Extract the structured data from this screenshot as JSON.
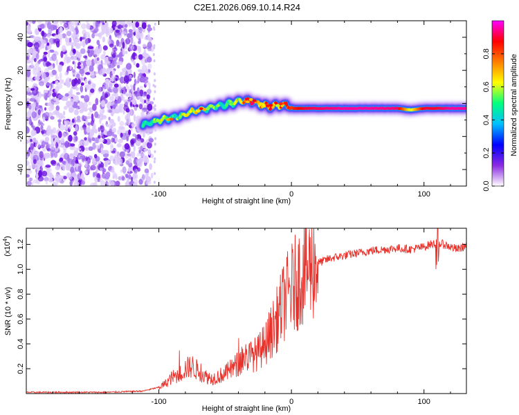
{
  "title": "C2E1.2026.069.10.14.R24",
  "chart_data": [
    {
      "type": "heatmap",
      "xlabel": "Height of straight line (km)",
      "ylabel": "Frequency (Hz)",
      "xlim": [
        -200,
        132
      ],
      "ylim": [
        -50,
        50
      ],
      "x_ticks": [
        -100,
        0,
        100
      ],
      "x_tick_labels": [
        "-100",
        "0",
        "100"
      ],
      "y_ticks": [
        -40,
        -20,
        0,
        20,
        40
      ],
      "y_tick_labels": [
        "-40",
        "-20",
        "0",
        "20",
        "40"
      ],
      "colorbar": {
        "label": "Normalized spectral amplitude",
        "range": [
          0,
          1
        ],
        "ticks": [
          0.0,
          0.2,
          0.4,
          0.6,
          0.8
        ],
        "tick_labels": [
          "0.0",
          "0.2",
          "0.4",
          "0.6",
          "0.8"
        ],
        "colors": [
          "#ffffff",
          "#8a2be2",
          "#0000ff",
          "#00bfff",
          "#00ff80",
          "#ffff00",
          "#ff8000",
          "#ff0000",
          "#ff00ff"
        ]
      },
      "noise_region_x": [
        -200,
        -103
      ],
      "ridge": {
        "x": [
          -112,
          -100,
          -92,
          -84,
          -78,
          -72,
          -64,
          -58,
          -52,
          -46,
          -40,
          -34,
          -28,
          -22,
          -16,
          -10,
          -4,
          2,
          10,
          20,
          40,
          60,
          80,
          90,
          100,
          110,
          120,
          132
        ],
        "freq_hz": [
          -13,
          -10,
          -9,
          -8,
          -6,
          -4,
          -3,
          -2,
          -1,
          0,
          1,
          2,
          1,
          -1,
          -2,
          -1,
          -1,
          -3,
          -3,
          -3,
          -3,
          -3,
          -3,
          -4,
          -3,
          -3,
          -3,
          -3
        ],
        "amplitude": [
          0.45,
          0.55,
          0.5,
          0.55,
          0.6,
          0.6,
          0.55,
          0.55,
          0.5,
          0.55,
          0.6,
          0.8,
          0.85,
          0.7,
          0.8,
          0.75,
          0.75,
          0.85,
          0.9,
          0.92,
          0.95,
          0.95,
          0.93,
          0.6,
          0.9,
          0.9,
          0.95,
          0.95
        ]
      }
    },
    {
      "type": "line",
      "xlabel": "Height of straight line (km)",
      "ylabel": "SNR (10 * v/v)",
      "y_multiplier": "(x10",
      "y_multiplier_exp": "4",
      "y_multiplier_close": ")",
      "xlim": [
        -200,
        132
      ],
      "ylim": [
        0,
        1.33
      ],
      "x_ticks": [
        -100,
        0,
        100
      ],
      "x_tick_labels": [
        "-100",
        "0",
        "100"
      ],
      "y_ticks": [
        0.2,
        0.4,
        0.6,
        0.8,
        1.0,
        1.2
      ],
      "y_tick_labels": [
        "0.2",
        "0.4",
        "0.6",
        "0.8",
        "1.0",
        "1.2"
      ],
      "series": [
        {
          "name": "SNR",
          "color": "#e8312a",
          "x": [
            -200,
            -170,
            -140,
            -112,
            -100,
            -95,
            -90,
            -85,
            -80,
            -75,
            -70,
            -65,
            -60,
            -55,
            -50,
            -45,
            -40,
            -35,
            -30,
            -25,
            -20,
            -15,
            -10,
            -5,
            0,
            5,
            10,
            15,
            20,
            25,
            30,
            40,
            50,
            60,
            70,
            80,
            90,
            100,
            105,
            110,
            115,
            120,
            125,
            132
          ],
          "y": [
            0.01,
            0.01,
            0.01,
            0.02,
            0.05,
            0.08,
            0.13,
            0.15,
            0.2,
            0.22,
            0.18,
            0.14,
            0.12,
            0.14,
            0.16,
            0.2,
            0.24,
            0.3,
            0.3,
            0.33,
            0.4,
            0.5,
            0.62,
            0.76,
            0.84,
            0.92,
            1.0,
            1.03,
            1.05,
            1.07,
            1.09,
            1.11,
            1.13,
            1.15,
            1.16,
            1.17,
            1.16,
            1.18,
            1.2,
            1.21,
            1.2,
            1.18,
            1.16,
            1.19
          ]
        }
      ]
    }
  ]
}
